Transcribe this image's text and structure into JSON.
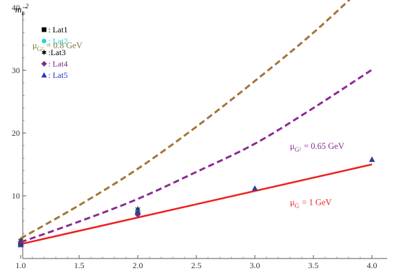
{
  "chart_data": {
    "type": "line",
    "ylabel": "m_n^2",
    "xlim": [
      1.0,
      4.0
    ],
    "ylim": [
      0,
      45
    ],
    "x_ticks": [
      "1.0",
      "1.5",
      "2.0",
      "2.5",
      "3.0",
      "3.5",
      "4.0"
    ],
    "y_ticks": [
      "10",
      "20",
      "30",
      "40"
    ],
    "grid": false,
    "legend_position": "top-left",
    "series": [
      {
        "name": "μ_{G²} = 0.8 GeV",
        "style": "dashed",
        "color": "#a5733a",
        "x": [
          1.0,
          1.5,
          2.0,
          2.5,
          3.0,
          3.5,
          4.0
        ],
        "y": [
          3.2,
          8.5,
          14.3,
          21.0,
          28.3,
          36.0,
          44.6
        ]
      },
      {
        "name": "μ_{G²} = 0.65 GeV",
        "style": "dashed",
        "color": "#8b2a91",
        "x": [
          1.0,
          1.5,
          2.0,
          2.5,
          3.0,
          3.5,
          4.0
        ],
        "y": [
          2.6,
          5.9,
          9.5,
          13.8,
          18.3,
          24.0,
          30.1
        ]
      },
      {
        "name": "μ_G = 1 GeV",
        "style": "solid",
        "color": "#ee2222",
        "x": [
          1.0,
          4.0
        ],
        "y": [
          2.3,
          15.0
        ]
      }
    ],
    "points": [
      {
        "name": "Lat1",
        "marker": "square",
        "color": "#111111",
        "x": [
          1.0,
          2.0
        ],
        "y": [
          2.3,
          7.3
        ]
      },
      {
        "name": "Lat2",
        "marker": "circle",
        "color": "#33cccc",
        "x": [
          1.0,
          2.0
        ],
        "y": [
          2.6,
          7.6
        ]
      },
      {
        "name": "Lat3",
        "marker": "star",
        "color": "#333333",
        "x": [
          1.0,
          2.0
        ],
        "y": [
          2.9,
          7.9
        ]
      },
      {
        "name": "Lat4",
        "marker": "diamond",
        "color": "#7a2a8a",
        "x": [
          1.0,
          2.0
        ],
        "y": [
          2.5,
          7.0
        ]
      },
      {
        "name": "Lat5",
        "marker": "triangle",
        "color": "#2a3f9a",
        "x": [
          1.0,
          2.0,
          3.0,
          4.0
        ],
        "y": [
          2.2,
          7.5,
          11.2,
          15.8
        ]
      }
    ],
    "legend": [
      {
        "label": ": Lat1",
        "color": "#000000",
        "marker": "square",
        "marker_color": "#000000"
      },
      {
        "label": ": Lat2",
        "color": "#33cccc",
        "marker": "circle",
        "marker_color": "#33cccc"
      },
      {
        "label": ":Lat3",
        "color": "#000000",
        "marker": "star",
        "marker_color": "#000000"
      },
      {
        "label": ": Lat4",
        "color": "#7a2a8a",
        "marker": "diamond",
        "marker_color": "#7a2a8a"
      },
      {
        "label": ": Lat5",
        "color": "#2233cc",
        "marker": "triangle",
        "marker_color": "#2233cc"
      }
    ],
    "annotations": [
      {
        "series": 0,
        "text": "μ_{G²} = 0.8 GeV",
        "color": "#7a7a44",
        "anchor_x": 1.1,
        "anchor_y": 33.5
      },
      {
        "series": 1,
        "text": "μ_{G²} = 0.65 GeV",
        "color": "#8b2a91",
        "anchor_x": 3.3,
        "anchor_y": 17.5
      },
      {
        "series": 2,
        "text": "μ_G = 1 GeV",
        "color": "#ee2222",
        "anchor_x": 3.3,
        "anchor_y": 8.5
      }
    ]
  }
}
